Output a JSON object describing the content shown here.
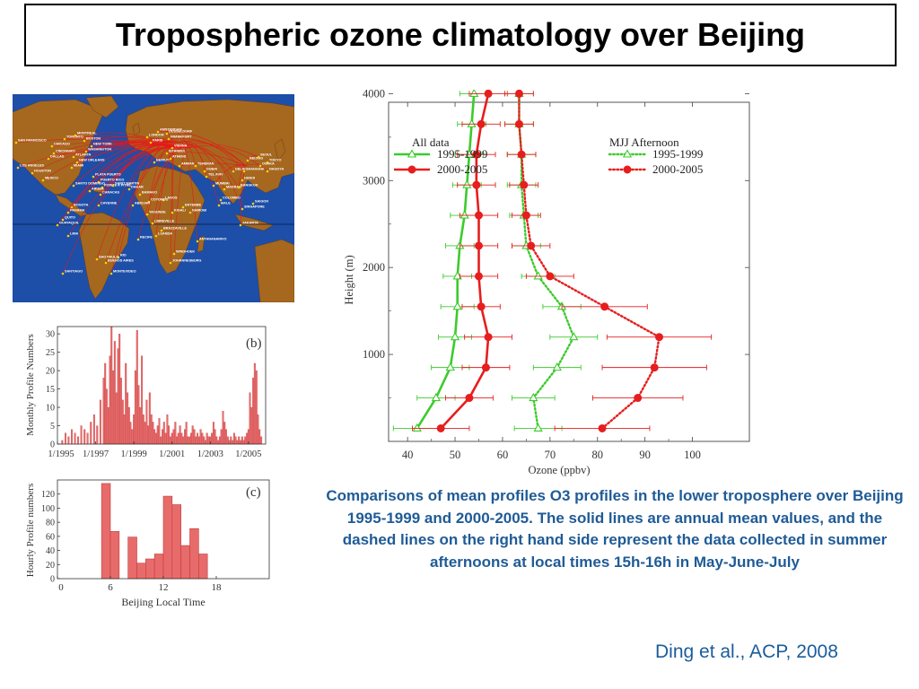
{
  "title": "Tropospheric ozone climatology over Beijing",
  "map": {
    "ocean_color": "#1d4ea8",
    "land_color": "#a6671f",
    "route_color": "#e8161b",
    "dot_color": "#f5d400",
    "cities": [
      "AMSTERDAM",
      "LONDON",
      "DÜSSELDORF",
      "FRANKFURT",
      "PARIS",
      "VIENNA",
      "ISTANBUL",
      "ATHENS",
      "BEIRUT",
      "AMMAN",
      "TEHERAN",
      "BEIJING",
      "SEOUL",
      "TOKYO",
      "OSAKA",
      "NAGOYA",
      "SHANGHAI",
      "HANOI",
      "DELHI",
      "DUBAI",
      "TEL AVIV",
      "MUMBAI",
      "MADRAS",
      "COLOMBO",
      "BANGKOK",
      "SAIGON",
      "SINGAPORE",
      "JAKARTA",
      "MALE",
      "NAIROBI",
      "KIGALI",
      "ENTEBBE",
      "LIBREVILLE",
      "BRAZZAVILLE",
      "LUANDA",
      "LAGOS",
      "COTONOU",
      "ABIDJAN",
      "YAOUNDE",
      "BAMAKO",
      "DAKAR",
      "WINDHOEK",
      "JOHANNESBURG",
      "ANTANANARIVO",
      "SAN FRANCISCO",
      "CHICAGO",
      "CINCINNATI",
      "DALLAS",
      "LOS ANGELES",
      "HOUSTON",
      "TORONTO",
      "MONTREAL",
      "BOSTON",
      "NEW YORK",
      "WASHINGTON",
      "ATLANTA",
      "NEW ORLEANS",
      "MIAMI",
      "MEXICO",
      "PUERTO RICO",
      "PLATA PUERTO",
      "SANTO DOMINGO",
      "POINTE A PITRE",
      "SAINT MARTIN",
      "ARUBA",
      "CARACAS",
      "BOGOTA",
      "PANAMA",
      "QUITO",
      "GUAYAQUIL",
      "CAYENNE",
      "RECIFE",
      "RIO",
      "SAO PAULO",
      "BUENOS AIRES",
      "MONTEVIDEO",
      "SANTIAGO",
      "LIMA"
    ]
  },
  "chart_b": {
    "panel_label": "(b)",
    "ylabel": "Monthly Profile Numbers",
    "x_tick_labels": [
      "1/1995",
      "1/1997",
      "1/1999",
      "1/2001",
      "1/2003",
      "1/2005"
    ],
    "y_tick_labels": [
      "0",
      "5",
      "10",
      "15",
      "20",
      "25",
      "30"
    ]
  },
  "chart_c": {
    "panel_label": "(c)",
    "ylabel": "Hourly Profile numbers",
    "xlabel": "Beijing Local Time",
    "x_tick_labels": [
      "0",
      "6",
      "12",
      "18"
    ],
    "y_tick_labels": [
      "0",
      "20",
      "40",
      "60",
      "80",
      "100",
      "120"
    ]
  },
  "caption": "Comparisons of mean profiles O3 profiles in the lower troposphere over Beijing 1995-1999 and 2000-2005. The solid lines are annual mean values, and the dashed lines on the right hand side represent the data collected in summer afternoons at local times 15h-16h in May-June-July",
  "citation": "Ding et al., ACP, 2008",
  "chart_data": [
    {
      "type": "bar",
      "panel": "(b)",
      "ylabel": "Monthly Profile Numbers",
      "ylim": [
        0,
        32
      ],
      "xlim": [
        1995.0,
        2005.9
      ],
      "x_tick_labels": [
        "1/1995",
        "1/1997",
        "1/1999",
        "1/2001",
        "1/2003",
        "1/2005"
      ],
      "bar_color": "#e86b6b",
      "x": [
        1995.25,
        1995.42,
        1995.58,
        1995.75,
        1995.92,
        1996.08,
        1996.25,
        1996.42,
        1996.58,
        1996.75,
        1996.92,
        1997.08,
        1997.25,
        1997.42,
        1997.5,
        1997.58,
        1997.67,
        1997.75,
        1997.83,
        1997.92,
        1998.0,
        1998.08,
        1998.17,
        1998.25,
        1998.33,
        1998.42,
        1998.5,
        1998.58,
        1998.67,
        1998.75,
        1998.83,
        1998.92,
        1999.0,
        1999.08,
        1999.17,
        1999.25,
        1999.33,
        1999.42,
        1999.5,
        1999.58,
        1999.67,
        1999.75,
        1999.83,
        1999.92,
        2000.0,
        2000.08,
        2000.17,
        2000.25,
        2000.33,
        2000.42,
        2000.5,
        2000.58,
        2000.67,
        2000.75,
        2000.83,
        2000.92,
        2001.0,
        2001.08,
        2001.17,
        2001.25,
        2001.33,
        2001.42,
        2001.5,
        2001.58,
        2001.67,
        2001.75,
        2001.83,
        2001.92,
        2002.0,
        2002.08,
        2002.17,
        2002.25,
        2002.33,
        2002.42,
        2002.5,
        2002.58,
        2002.67,
        2002.75,
        2002.83,
        2002.92,
        2003.0,
        2003.08,
        2003.17,
        2003.25,
        2003.33,
        2003.42,
        2003.5,
        2003.58,
        2003.67,
        2003.75,
        2003.83,
        2003.92,
        2004.0,
        2004.08,
        2004.17,
        2004.25,
        2004.33,
        2004.42,
        2004.5,
        2004.58,
        2004.67,
        2004.75,
        2004.83,
        2004.92,
        2005.0,
        2005.08,
        2005.17,
        2005.25,
        2005.33,
        2005.42,
        2005.5,
        2005.58,
        2005.67
      ],
      "values": [
        1,
        3,
        2,
        4,
        3,
        2,
        5,
        4,
        3,
        6,
        8,
        5,
        12,
        18,
        22,
        15,
        10,
        24,
        32,
        20,
        28,
        14,
        26,
        30,
        18,
        12,
        8,
        22,
        14,
        10,
        6,
        4,
        8,
        20,
        31,
        16,
        10,
        24,
        8,
        6,
        12,
        5,
        14,
        8,
        6,
        4,
        3,
        5,
        7,
        2,
        4,
        6,
        3,
        8,
        5,
        2,
        3,
        4,
        6,
        2,
        3,
        5,
        3,
        2,
        4,
        6,
        2,
        2,
        3,
        5,
        4,
        2,
        3,
        2,
        4,
        3,
        2,
        1,
        3,
        2,
        2,
        3,
        6,
        4,
        2,
        1,
        2,
        4,
        9,
        6,
        4,
        2,
        1,
        2,
        1,
        3,
        2,
        1,
        2,
        1,
        2,
        1,
        2,
        3,
        4,
        14,
        10,
        18,
        22,
        20,
        8,
        4,
        2
      ]
    },
    {
      "type": "bar",
      "panel": "(c)",
      "ylabel": "Hourly Profile numbers",
      "xlabel": "Beijing Local Time",
      "xlim": [
        0,
        24
      ],
      "ylim": [
        0,
        140
      ],
      "x_tick_labels": [
        "0",
        "6",
        "12",
        "18"
      ],
      "bar_color": "#e86b6b",
      "categories": [
        "5",
        "6",
        "7",
        "8",
        "9",
        "10",
        "11",
        "12",
        "13",
        "14",
        "15",
        "16"
      ],
      "values": [
        135,
        67,
        0,
        59,
        22,
        28,
        35,
        117,
        105,
        47,
        71,
        35
      ]
    },
    {
      "type": "line",
      "xlabel": "Ozone (ppbv)",
      "ylabel": "Height (m)",
      "xlim": [
        35,
        105
      ],
      "ylim": [
        0,
        4000
      ],
      "x_tick_labels": [
        "40",
        "50",
        "60",
        "70",
        "80",
        "90",
        "100"
      ],
      "y_tick_labels": [
        "1000",
        "2000",
        "3000",
        "4000"
      ],
      "legend_left_title": "All data",
      "legend_right_title": "MJJ Afternoon",
      "y": [
        150,
        500,
        850,
        1200,
        1550,
        1900,
        2250,
        2600,
        2950,
        3300,
        3650,
        4000
      ],
      "series": [
        {
          "name": "1995-1999",
          "group": "All data",
          "style": "solid",
          "marker": "open-triangle",
          "color": "#3ccb2c",
          "x": [
            42,
            46,
            49,
            50,
            50.5,
            50.5,
            51,
            52,
            52.5,
            53,
            53.5,
            54
          ],
          "err": [
            5,
            4,
            4,
            3.5,
            3.5,
            3,
            3,
            3,
            3,
            3,
            3,
            3
          ]
        },
        {
          "name": "2000-2005",
          "group": "All data",
          "style": "solid",
          "marker": "filled-circle",
          "color": "#e61e1e",
          "x": [
            47,
            53,
            56.5,
            57,
            55.5,
            55,
            55,
            55,
            54.5,
            54.5,
            55.5,
            57
          ],
          "err": [
            6,
            5,
            5,
            5,
            4,
            4,
            4,
            4,
            4,
            4,
            4,
            4
          ]
        },
        {
          "name": "1995-1999",
          "group": "MJJ Afternoon",
          "style": "dotted",
          "marker": "open-triangle",
          "color": "#3ccb2c",
          "x": [
            67.5,
            66.5,
            71.5,
            75,
            72.5,
            67.5,
            65,
            64.5,
            64,
            64,
            63.5,
            63.5
          ],
          "err": [
            5,
            4.5,
            5,
            5,
            4,
            3.5,
            3,
            3,
            3,
            3,
            3,
            3
          ]
        },
        {
          "name": "2000-2005",
          "group": "MJJ Afternoon",
          "style": "dotted",
          "marker": "filled-circle",
          "color": "#e61e1e",
          "x": [
            81,
            88.5,
            92,
            93,
            81.5,
            70,
            66,
            65,
            64.5,
            64,
            63.5,
            63.5
          ],
          "err": [
            10,
            9.5,
            11,
            11,
            9,
            5,
            4,
            3,
            3,
            3,
            3,
            3
          ]
        }
      ]
    }
  ]
}
